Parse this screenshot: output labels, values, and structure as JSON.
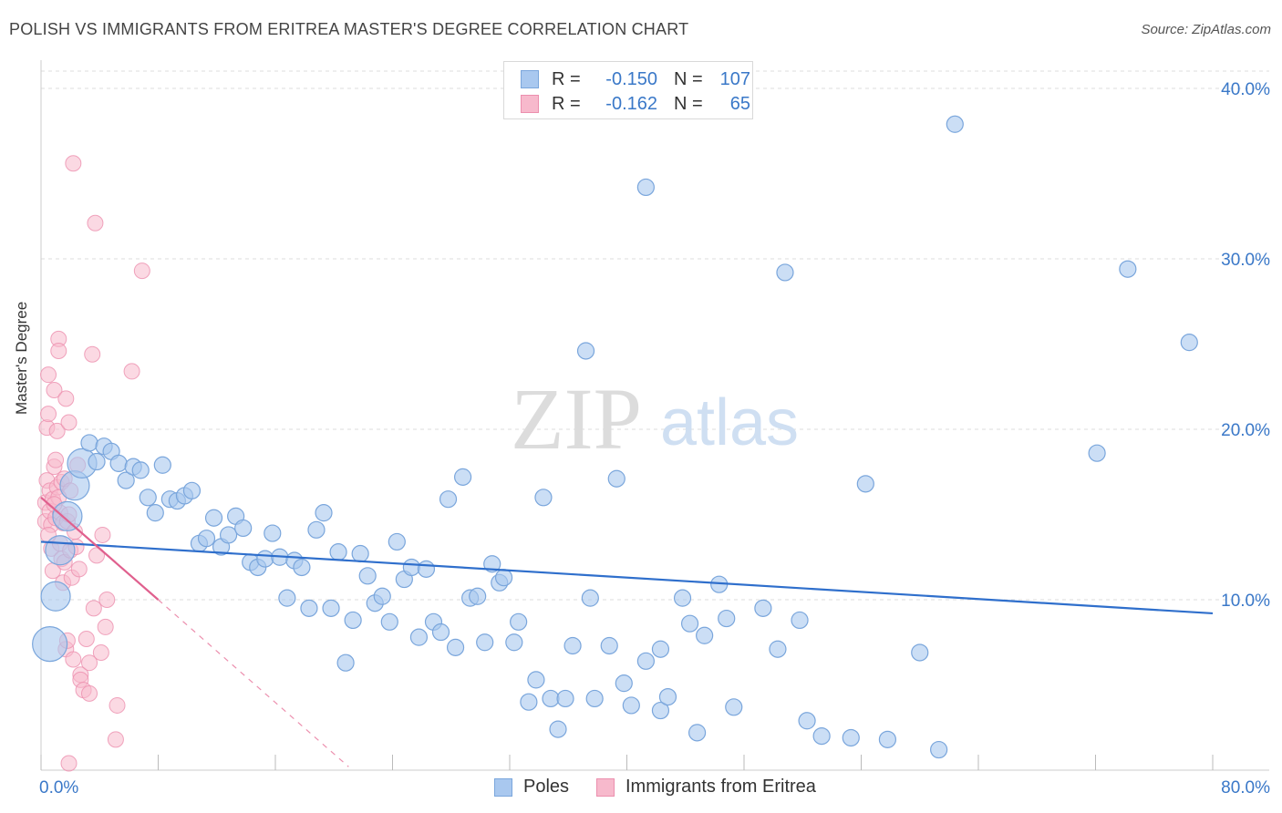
{
  "title": "POLISH VS IMMIGRANTS FROM ERITREA MASTER'S DEGREE CORRELATION CHART",
  "source": "Source: ZipAtlas.com",
  "watermark": {
    "zip": "ZIP",
    "atlas": "atlas"
  },
  "legend": {
    "rows": [
      {
        "r_label": "R =",
        "r_value": "-0.150",
        "n_label": "N =",
        "n_value": "107"
      },
      {
        "r_label": "R =",
        "r_value": "-0.162",
        "n_label": "N =",
        "n_value": "65"
      }
    ]
  },
  "colors": {
    "poles_fill": "#a9c8ef",
    "poles_stroke": "#7aa6dc",
    "poles_line": "#2f6fcc",
    "eritrea_fill": "#f7b9cc",
    "eritrea_stroke": "#ec8fae",
    "eritrea_line": "#e0608e",
    "tick_text": "#3a78c8",
    "grid": "#dddddd"
  },
  "chart_data": {
    "type": "scatter",
    "title": "POLISH VS IMMIGRANTS FROM ERITREA MASTER'S DEGREE CORRELATION CHART",
    "xlabel": "",
    "ylabel": "Master's Degree",
    "xlim": [
      0,
      80
    ],
    "ylim": [
      0,
      40
    ],
    "x_tick_labels": [
      "0.0%",
      "80.0%"
    ],
    "y_tick_labels": [
      "10.0%",
      "20.0%",
      "30.0%",
      "40.0%"
    ],
    "y_ticks": [
      10,
      20,
      30,
      40
    ],
    "grid": true,
    "legend_position": "top-center",
    "series": [
      {
        "name": "Poles",
        "r": -0.15,
        "n": 107,
        "trend": {
          "x": [
            0,
            80
          ],
          "y": [
            13.4,
            9.2
          ],
          "style": "solid"
        },
        "points": [
          {
            "x": 0.6,
            "y": 7.4,
            "s": 3
          },
          {
            "x": 1.0,
            "y": 10.2,
            "s": 2
          },
          {
            "x": 1.3,
            "y": 12.9,
            "s": 2
          },
          {
            "x": 1.8,
            "y": 14.9,
            "s": 2
          },
          {
            "x": 2.3,
            "y": 16.7,
            "s": 2
          },
          {
            "x": 2.8,
            "y": 18.0,
            "s": 2
          },
          {
            "x": 3.8,
            "y": 18.1,
            "s": 1
          },
          {
            "x": 3.3,
            "y": 19.2,
            "s": 1
          },
          {
            "x": 4.3,
            "y": 19.0,
            "s": 1
          },
          {
            "x": 4.8,
            "y": 18.7,
            "s": 1
          },
          {
            "x": 5.3,
            "y": 18.0,
            "s": 1
          },
          {
            "x": 5.8,
            "y": 17.0,
            "s": 1
          },
          {
            "x": 6.3,
            "y": 17.8,
            "s": 1
          },
          {
            "x": 6.8,
            "y": 17.6,
            "s": 1
          },
          {
            "x": 7.3,
            "y": 16.0,
            "s": 1
          },
          {
            "x": 7.8,
            "y": 15.1,
            "s": 1
          },
          {
            "x": 8.3,
            "y": 17.9,
            "s": 1
          },
          {
            "x": 8.8,
            "y": 15.9,
            "s": 1
          },
          {
            "x": 9.3,
            "y": 15.8,
            "s": 1
          },
          {
            "x": 9.8,
            "y": 16.1,
            "s": 1
          },
          {
            "x": 10.3,
            "y": 16.4,
            "s": 1
          },
          {
            "x": 10.8,
            "y": 13.3,
            "s": 1
          },
          {
            "x": 11.3,
            "y": 13.6,
            "s": 1
          },
          {
            "x": 11.8,
            "y": 14.8,
            "s": 1
          },
          {
            "x": 12.3,
            "y": 13.1,
            "s": 1
          },
          {
            "x": 12.8,
            "y": 13.8,
            "s": 1
          },
          {
            "x": 13.3,
            "y": 14.9,
            "s": 1
          },
          {
            "x": 13.8,
            "y": 14.2,
            "s": 1
          },
          {
            "x": 14.3,
            "y": 12.2,
            "s": 1
          },
          {
            "x": 14.8,
            "y": 11.9,
            "s": 1
          },
          {
            "x": 15.3,
            "y": 12.4,
            "s": 1
          },
          {
            "x": 15.8,
            "y": 13.9,
            "s": 1
          },
          {
            "x": 16.3,
            "y": 12.5,
            "s": 1
          },
          {
            "x": 16.8,
            "y": 10.1,
            "s": 1
          },
          {
            "x": 17.3,
            "y": 12.3,
            "s": 1
          },
          {
            "x": 17.8,
            "y": 11.9,
            "s": 1
          },
          {
            "x": 18.3,
            "y": 9.5,
            "s": 1
          },
          {
            "x": 18.8,
            "y": 14.1,
            "s": 1
          },
          {
            "x": 19.3,
            "y": 15.1,
            "s": 1
          },
          {
            "x": 19.8,
            "y": 9.5,
            "s": 1
          },
          {
            "x": 20.3,
            "y": 12.8,
            "s": 1
          },
          {
            "x": 20.8,
            "y": 6.3,
            "s": 1
          },
          {
            "x": 21.3,
            "y": 8.8,
            "s": 1
          },
          {
            "x": 21.8,
            "y": 12.7,
            "s": 1
          },
          {
            "x": 22.3,
            "y": 11.4,
            "s": 1
          },
          {
            "x": 22.8,
            "y": 9.8,
            "s": 1
          },
          {
            "x": 23.3,
            "y": 10.2,
            "s": 1
          },
          {
            "x": 23.8,
            "y": 8.7,
            "s": 1
          },
          {
            "x": 24.3,
            "y": 13.4,
            "s": 1
          },
          {
            "x": 24.8,
            "y": 11.2,
            "s": 1
          },
          {
            "x": 25.3,
            "y": 11.9,
            "s": 1
          },
          {
            "x": 25.8,
            "y": 7.8,
            "s": 1
          },
          {
            "x": 26.3,
            "y": 11.8,
            "s": 1
          },
          {
            "x": 26.8,
            "y": 8.7,
            "s": 1
          },
          {
            "x": 27.3,
            "y": 8.1,
            "s": 1
          },
          {
            "x": 27.8,
            "y": 15.9,
            "s": 1
          },
          {
            "x": 28.3,
            "y": 7.2,
            "s": 1
          },
          {
            "x": 28.8,
            "y": 17.2,
            "s": 1
          },
          {
            "x": 29.3,
            "y": 10.1,
            "s": 1
          },
          {
            "x": 29.8,
            "y": 10.2,
            "s": 1
          },
          {
            "x": 30.3,
            "y": 7.5,
            "s": 1
          },
          {
            "x": 30.8,
            "y": 12.1,
            "s": 1
          },
          {
            "x": 31.3,
            "y": 11.0,
            "s": 1
          },
          {
            "x": 31.6,
            "y": 11.3,
            "s": 1
          },
          {
            "x": 32.3,
            "y": 7.5,
            "s": 1
          },
          {
            "x": 32.6,
            "y": 8.7,
            "s": 1
          },
          {
            "x": 33.3,
            "y": 4.0,
            "s": 1
          },
          {
            "x": 33.8,
            "y": 5.3,
            "s": 1
          },
          {
            "x": 34.3,
            "y": 16.0,
            "s": 1
          },
          {
            "x": 34.8,
            "y": 4.2,
            "s": 1
          },
          {
            "x": 35.3,
            "y": 2.4,
            "s": 1
          },
          {
            "x": 35.8,
            "y": 4.2,
            "s": 1
          },
          {
            "x": 36.3,
            "y": 7.3,
            "s": 1
          },
          {
            "x": 37.2,
            "y": 24.6,
            "s": 1
          },
          {
            "x": 37.5,
            "y": 10.1,
            "s": 1
          },
          {
            "x": 37.8,
            "y": 4.2,
            "s": 1
          },
          {
            "x": 38.8,
            "y": 7.3,
            "s": 1
          },
          {
            "x": 39.3,
            "y": 17.1,
            "s": 1
          },
          {
            "x": 39.8,
            "y": 5.1,
            "s": 1
          },
          {
            "x": 40.3,
            "y": 3.8,
            "s": 1
          },
          {
            "x": 41.3,
            "y": 6.4,
            "s": 1
          },
          {
            "x": 41.3,
            "y": 34.2,
            "s": 1
          },
          {
            "x": 42.3,
            "y": 7.1,
            "s": 1
          },
          {
            "x": 42.3,
            "y": 3.5,
            "s": 1
          },
          {
            "x": 42.8,
            "y": 4.3,
            "s": 1
          },
          {
            "x": 43.8,
            "y": 10.1,
            "s": 1
          },
          {
            "x": 44.3,
            "y": 8.6,
            "s": 1
          },
          {
            "x": 44.8,
            "y": 2.2,
            "s": 1
          },
          {
            "x": 45.3,
            "y": 7.9,
            "s": 1
          },
          {
            "x": 46.3,
            "y": 10.9,
            "s": 1
          },
          {
            "x": 46.8,
            "y": 8.9,
            "s": 1
          },
          {
            "x": 47.3,
            "y": 3.7,
            "s": 1
          },
          {
            "x": 49.3,
            "y": 9.5,
            "s": 1
          },
          {
            "x": 50.3,
            "y": 7.1,
            "s": 1
          },
          {
            "x": 50.8,
            "y": 29.2,
            "s": 1
          },
          {
            "x": 51.8,
            "y": 8.8,
            "s": 1
          },
          {
            "x": 52.3,
            "y": 2.9,
            "s": 1
          },
          {
            "x": 53.3,
            "y": 2.0,
            "s": 1
          },
          {
            "x": 55.3,
            "y": 1.9,
            "s": 1
          },
          {
            "x": 56.3,
            "y": 16.8,
            "s": 1
          },
          {
            "x": 57.8,
            "y": 1.8,
            "s": 1
          },
          {
            "x": 60.0,
            "y": 6.9,
            "s": 1
          },
          {
            "x": 61.3,
            "y": 1.2,
            "s": 1
          },
          {
            "x": 62.4,
            "y": 37.9,
            "s": 1
          },
          {
            "x": 72.1,
            "y": 18.6,
            "s": 1
          },
          {
            "x": 74.2,
            "y": 29.4,
            "s": 1
          },
          {
            "x": 78.4,
            "y": 25.1,
            "s": 1
          }
        ]
      },
      {
        "name": "Immigrants from Eritrea",
        "r": -0.162,
        "n": 65,
        "trend": {
          "x": [
            0,
            8
          ],
          "y": [
            16.0,
            10.0
          ],
          "dashed_to": [
            21,
            0.2
          ]
        },
        "points": [
          {
            "x": 0.3,
            "y": 14.6
          },
          {
            "x": 0.3,
            "y": 15.7
          },
          {
            "x": 0.4,
            "y": 17.0
          },
          {
            "x": 0.4,
            "y": 20.1
          },
          {
            "x": 0.5,
            "y": 20.9
          },
          {
            "x": 0.5,
            "y": 23.2
          },
          {
            "x": 0.6,
            "y": 16.4
          },
          {
            "x": 0.6,
            "y": 15.2
          },
          {
            "x": 0.7,
            "y": 14.4
          },
          {
            "x": 0.7,
            "y": 13.0
          },
          {
            "x": 0.8,
            "y": 11.7
          },
          {
            "x": 0.8,
            "y": 15.9
          },
          {
            "x": 0.9,
            "y": 17.8
          },
          {
            "x": 0.9,
            "y": 22.3
          },
          {
            "x": 1.0,
            "y": 14.8
          },
          {
            "x": 1.0,
            "y": 18.2
          },
          {
            "x": 1.1,
            "y": 16.6
          },
          {
            "x": 1.1,
            "y": 19.9
          },
          {
            "x": 1.2,
            "y": 25.3
          },
          {
            "x": 1.2,
            "y": 24.6
          },
          {
            "x": 1.3,
            "y": 15.1
          },
          {
            "x": 1.3,
            "y": 13.3
          },
          {
            "x": 1.4,
            "y": 12.4
          },
          {
            "x": 1.4,
            "y": 16.9
          },
          {
            "x": 1.5,
            "y": 14.5
          },
          {
            "x": 1.5,
            "y": 11.0
          },
          {
            "x": 1.6,
            "y": 12.2
          },
          {
            "x": 1.6,
            "y": 17.1
          },
          {
            "x": 1.7,
            "y": 21.8
          },
          {
            "x": 1.7,
            "y": 7.1
          },
          {
            "x": 1.8,
            "y": 7.6
          },
          {
            "x": 1.8,
            "y": 14.6
          },
          {
            "x": 1.9,
            "y": 15.0
          },
          {
            "x": 1.9,
            "y": 20.4
          },
          {
            "x": 2.0,
            "y": 12.9
          },
          {
            "x": 2.0,
            "y": 16.4
          },
          {
            "x": 2.1,
            "y": 11.3
          },
          {
            "x": 2.2,
            "y": 6.5
          },
          {
            "x": 2.2,
            "y": 35.6
          },
          {
            "x": 2.3,
            "y": 14.0
          },
          {
            "x": 2.4,
            "y": 13.1
          },
          {
            "x": 2.5,
            "y": 17.9
          },
          {
            "x": 2.6,
            "y": 11.8
          },
          {
            "x": 2.7,
            "y": 5.6
          },
          {
            "x": 2.7,
            "y": 5.3
          },
          {
            "x": 2.9,
            "y": 4.7
          },
          {
            "x": 3.1,
            "y": 7.7
          },
          {
            "x": 3.3,
            "y": 4.5
          },
          {
            "x": 3.3,
            "y": 6.3
          },
          {
            "x": 3.5,
            "y": 24.4
          },
          {
            "x": 3.6,
            "y": 9.5
          },
          {
            "x": 3.7,
            "y": 32.1
          },
          {
            "x": 3.8,
            "y": 12.6
          },
          {
            "x": 4.1,
            "y": 6.9
          },
          {
            "x": 4.2,
            "y": 13.8
          },
          {
            "x": 4.4,
            "y": 8.4
          },
          {
            "x": 4.5,
            "y": 10.0
          },
          {
            "x": 5.1,
            "y": 1.8
          },
          {
            "x": 5.2,
            "y": 3.8
          },
          {
            "x": 6.2,
            "y": 23.4
          },
          {
            "x": 6.9,
            "y": 29.3
          },
          {
            "x": 1.9,
            "y": 0.4
          },
          {
            "x": 0.5,
            "y": 13.8
          },
          {
            "x": 1.2,
            "y": 16.0
          },
          {
            "x": 0.9,
            "y": 15.6
          }
        ]
      }
    ]
  },
  "bottom_legend": {
    "items": [
      {
        "label": "Poles"
      },
      {
        "label": "Immigrants from Eritrea"
      }
    ]
  }
}
